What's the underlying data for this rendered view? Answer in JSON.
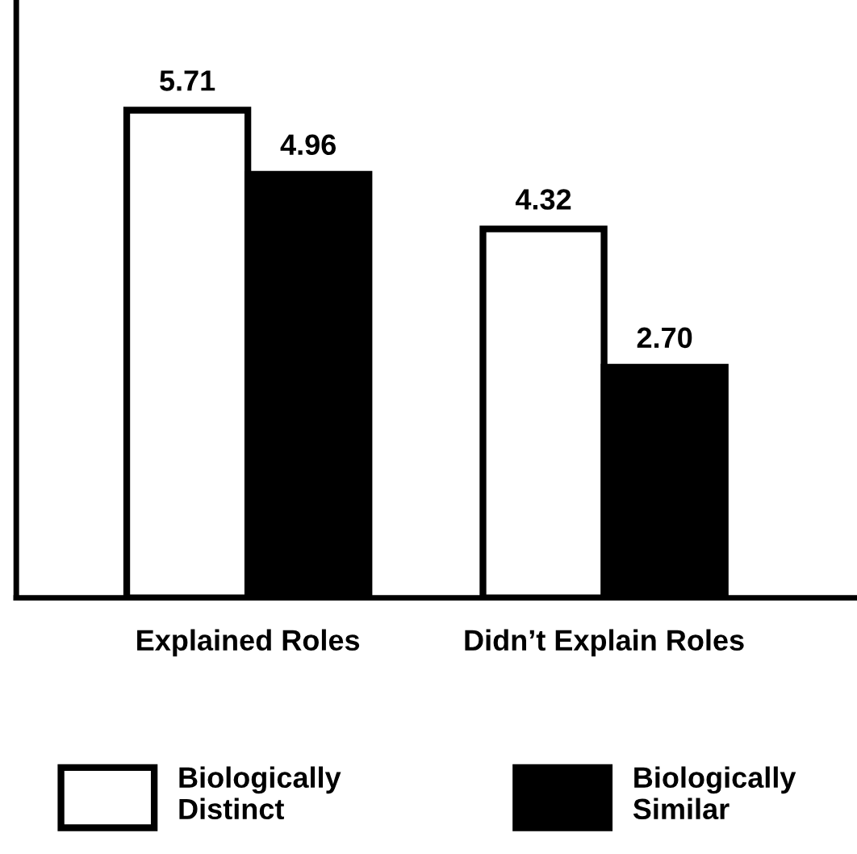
{
  "chart_data": {
    "type": "bar",
    "categories": [
      "Explained Roles",
      "Didn’t Explain Roles"
    ],
    "series": [
      {
        "name": "Biologically\nDistinct",
        "color": "#ffffff",
        "values": [
          5.71,
          4.32
        ],
        "value_labels": [
          "5.71",
          "4.32"
        ]
      },
      {
        "name": "Biologically\nSimilar",
        "color": "#000000",
        "values": [
          4.96,
          2.7
        ],
        "value_labels": [
          "4.96",
          "2.70"
        ]
      }
    ],
    "legend": "bottom",
    "tick_labels": "x"
  }
}
